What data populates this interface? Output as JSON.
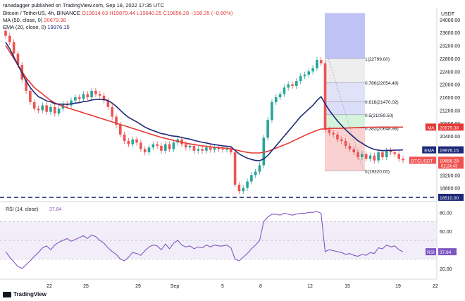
{
  "header": {
    "publisher": "ranadagger published on TradingView.com, Sep 18, 2022 17:35 UTC",
    "symbol": "Bitcoin / TetherUS, 4h, BINANCE",
    "ohlc": "O19814.63 H19879.44 L19640.25 C19656.28 −158.35 (−0.80%)",
    "ma_label": "MA (50, close, 0)",
    "ma_value": "20679.38",
    "ema_label": "EMA (20, close, 0)",
    "ema_value": "19976.15",
    "currency": "USDT"
  },
  "watermark": "TradingView",
  "colors": {
    "up": "#26a69a",
    "down": "#ef5350",
    "ema": "#1e2a78",
    "ma": "#e53935",
    "rsi": "#7e57c2",
    "support": "#1e2a78",
    "fib_upper": "#b9bcf5",
    "fib_lower": "#f7c1c1"
  },
  "chart_data": {
    "type": "candlestick",
    "price_axis": {
      "ticks": [
        "24000.00",
        "23600.00",
        "23200.00",
        "22800.00",
        "22400.00",
        "22000.00",
        "21600.00",
        "21200.00",
        "20800.00",
        "20400.00",
        "20000.00",
        "19600.00",
        "19200.00",
        "18800.00"
      ],
      "range": [
        18400,
        24300
      ]
    },
    "x_axis": {
      "ticks": [
        "22",
        "25",
        "29",
        "Sep",
        "5",
        "8",
        "12",
        "15",
        "19",
        "22"
      ]
    },
    "price_tags": [
      {
        "label": "MA",
        "value": "20679.38"
      },
      {
        "label": "EMA",
        "value": "19976.15"
      },
      {
        "label": "BTCUSDT",
        "value": "19656.28",
        "sub": "02:24:43"
      },
      {
        "label": "",
        "value": "18510.00"
      }
    ],
    "horizontal_support": 18510,
    "fib_levels": [
      {
        "ratio": "1",
        "text": "1(22799.00)",
        "price": 22799
      },
      {
        "ratio": "0.786",
        "text": "0.786(22054.49)",
        "price": 22054.49
      },
      {
        "ratio": "0.618",
        "text": "0.618(21470.02)",
        "price": 21470.02
      },
      {
        "ratio": "0.5",
        "text": "0.5(21059.50)",
        "price": 21059.5
      },
      {
        "ratio": "0.382",
        "text": "0.382(20648.98)",
        "price": 20648.98
      },
      {
        "ratio": "0",
        "text": "0(19320.00)",
        "price": 19320
      }
    ],
    "price_close": [
      23500,
      23300,
      22950,
      22600,
      22150,
      21800,
      21450,
      21250,
      21200,
      21350,
      21150,
      21300,
      21100,
      21250,
      21400,
      21350,
      21500,
      21600,
      21550,
      21700,
      21600,
      21800,
      21700,
      21650,
      21500,
      21300,
      21000,
      20750,
      20450,
      20250,
      20150,
      20300,
      20200,
      20000,
      19900,
      20050,
      20150,
      20100,
      19950,
      20150,
      20000,
      20200,
      20300,
      20150,
      20050,
      20100,
      19950,
      20000,
      19950,
      20050,
      19980,
      20050,
      20000,
      19980,
      20000,
      19900,
      18900,
      18700,
      18800,
      19000,
      19200,
      19300,
      19500,
      20350,
      20900,
      21450,
      21600,
      21700,
      21900,
      22000,
      21950,
      22100,
      22250,
      22300,
      22400,
      22500,
      22750,
      22650,
      20600,
      20500,
      20450,
      20300,
      20250,
      20100,
      20000,
      19900,
      19750,
      19850,
      19700,
      19800,
      19650,
      19900,
      19750,
      19950,
      19900,
      19850,
      19700,
      19656
    ],
    "ma50": [
      23200,
      23000,
      22800,
      22600,
      22400,
      22200,
      22050,
      21900,
      21800,
      21700,
      21600,
      21500,
      21430,
      21370,
      21320,
      21280,
      21240,
      21200,
      21160,
      21120,
      21080,
      21040,
      21000,
      20960,
      20920,
      20880,
      20840,
      20800,
      20760,
      20720,
      20680,
      20640,
      20600,
      20560,
      20520,
      20480,
      20440,
      20400,
      20360,
      20330,
      20300,
      20270,
      20240,
      20210,
      20180,
      20160,
      20140,
      20120,
      20100,
      20085,
      20070,
      20055,
      20045,
      20035,
      20025,
      20010,
      19980,
      19950,
      19920,
      19900,
      19880,
      19880,
      19880,
      19900,
      19930,
      19980,
      20030,
      20080,
      20130,
      20180,
      20240,
      20300,
      20360,
      20420,
      20480,
      20530,
      20580,
      20620,
      20620,
      20630,
      20640,
      20640,
      20645,
      20650,
      20655,
      20660,
      20665,
      20670,
      20672,
      20675,
      20677,
      20679,
      20680,
      20680,
      20680,
      20680,
      20680,
      20679
    ],
    "ema20": [
      23300,
      23100,
      22850,
      22600,
      22350,
      22100,
      21900,
      21750,
      21620,
      21560,
      21490,
      21460,
      21400,
      21390,
      21390,
      21385,
      21395,
      21420,
      21435,
      21465,
      21480,
      21515,
      21535,
      21540,
      21530,
      21500,
      21420,
      21320,
      21200,
      21080,
      20980,
      20910,
      20840,
      20760,
      20680,
      20620,
      20570,
      20530,
      20480,
      20460,
      20420,
      20400,
      20390,
      20360,
      20330,
      20310,
      20270,
      20240,
      20210,
      20190,
      20160,
      20140,
      20120,
      20100,
      20090,
      20070,
      19960,
      19850,
      19780,
      19720,
      19680,
      19650,
      19640,
      19700,
      19800,
      19950,
      20100,
      20250,
      20400,
      20550,
      20700,
      20850,
      21000,
      21120,
      21240,
      21350,
      21500,
      21620,
      21400,
      21200,
      21030,
      20870,
      20730,
      20600,
      20480,
      20370,
      20260,
      20180,
      20100,
      20040,
      19990,
      19970,
      19950,
      19960,
      19960,
      19970,
      19970,
      19976
    ],
    "rsi": {
      "label": "RSI (14, close)",
      "value": "37.84",
      "range": [
        10,
        90
      ],
      "levels": [
        70,
        30
      ],
      "ticks": [
        "80.00",
        "60.00",
        "40.00",
        "20.00"
      ],
      "values": [
        38,
        32,
        27,
        22,
        20,
        24,
        28,
        33,
        37,
        42,
        44,
        40,
        45,
        48,
        50,
        52,
        49,
        51,
        53,
        55,
        52,
        56,
        54,
        50,
        47,
        42,
        38,
        35,
        30,
        28,
        32,
        37,
        36,
        34,
        39,
        43,
        45,
        44,
        40,
        46,
        41,
        47,
        50,
        45,
        43,
        44,
        41,
        43,
        42,
        45,
        43,
        45,
        44,
        44,
        45,
        42,
        30,
        28,
        32,
        36,
        41,
        45,
        50,
        70,
        75,
        78,
        78,
        77,
        79,
        78,
        77,
        78,
        79,
        79,
        80,
        80,
        81,
        79,
        38,
        40,
        39,
        38,
        37,
        35,
        36,
        34,
        33,
        35,
        34,
        37,
        36,
        42,
        41,
        45,
        43,
        44,
        40,
        37.84
      ]
    }
  }
}
